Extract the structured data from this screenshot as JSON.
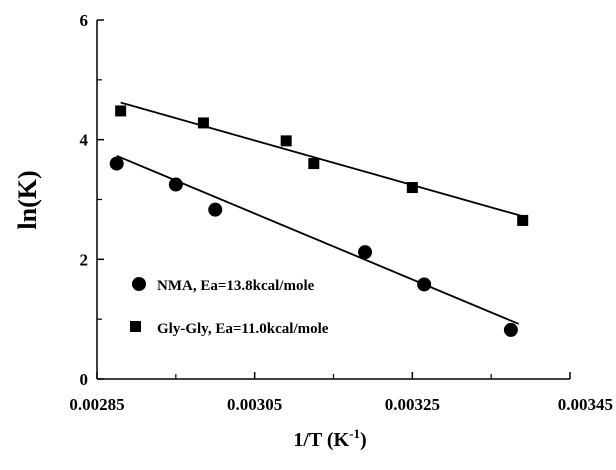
{
  "chart_data": {
    "type": "scatter",
    "xlabel": "1/T (K",
    "xlabel_sup": "-1",
    "xlabel_end": ")",
    "ylabel": "ln(K)",
    "xlim": [
      0.00285,
      0.00345
    ],
    "ylim": [
      0,
      6
    ],
    "x_ticks": [
      "0.00285",
      "0.00305",
      "0.00325",
      "0.00345"
    ],
    "y_ticks": [
      "0",
      "2",
      "4",
      "6"
    ],
    "grid": false,
    "legend_position": "bottom-left",
    "series": [
      {
        "name": "NMA, Ea=13.8kcal/mole",
        "marker": "circle",
        "points": [
          {
            "x": 0.002875,
            "y": 3.6
          },
          {
            "x": 0.00295,
            "y": 3.25
          },
          {
            "x": 0.003,
            "y": 2.83
          },
          {
            "x": 0.00319,
            "y": 2.12
          },
          {
            "x": 0.003265,
            "y": 1.58
          },
          {
            "x": 0.003375,
            "y": 0.82
          }
        ],
        "fit": {
          "x": [
            0.002875,
            0.003385
          ],
          "y": [
            3.73,
            0.92
          ]
        }
      },
      {
        "name": "Gly-Gly, Ea=11.0kcal/mole",
        "marker": "square",
        "points": [
          {
            "x": 0.00288,
            "y": 4.48
          },
          {
            "x": 0.002985,
            "y": 4.28
          },
          {
            "x": 0.00309,
            "y": 3.98
          },
          {
            "x": 0.003125,
            "y": 3.6
          },
          {
            "x": 0.00325,
            "y": 3.2
          },
          {
            "x": 0.00339,
            "y": 2.65
          }
        ],
        "fit": {
          "x": [
            0.00288,
            0.00339
          ],
          "y": [
            4.62,
            2.72
          ]
        }
      }
    ]
  },
  "colors": {
    "ink": "#000000",
    "background": "#ffffff"
  }
}
